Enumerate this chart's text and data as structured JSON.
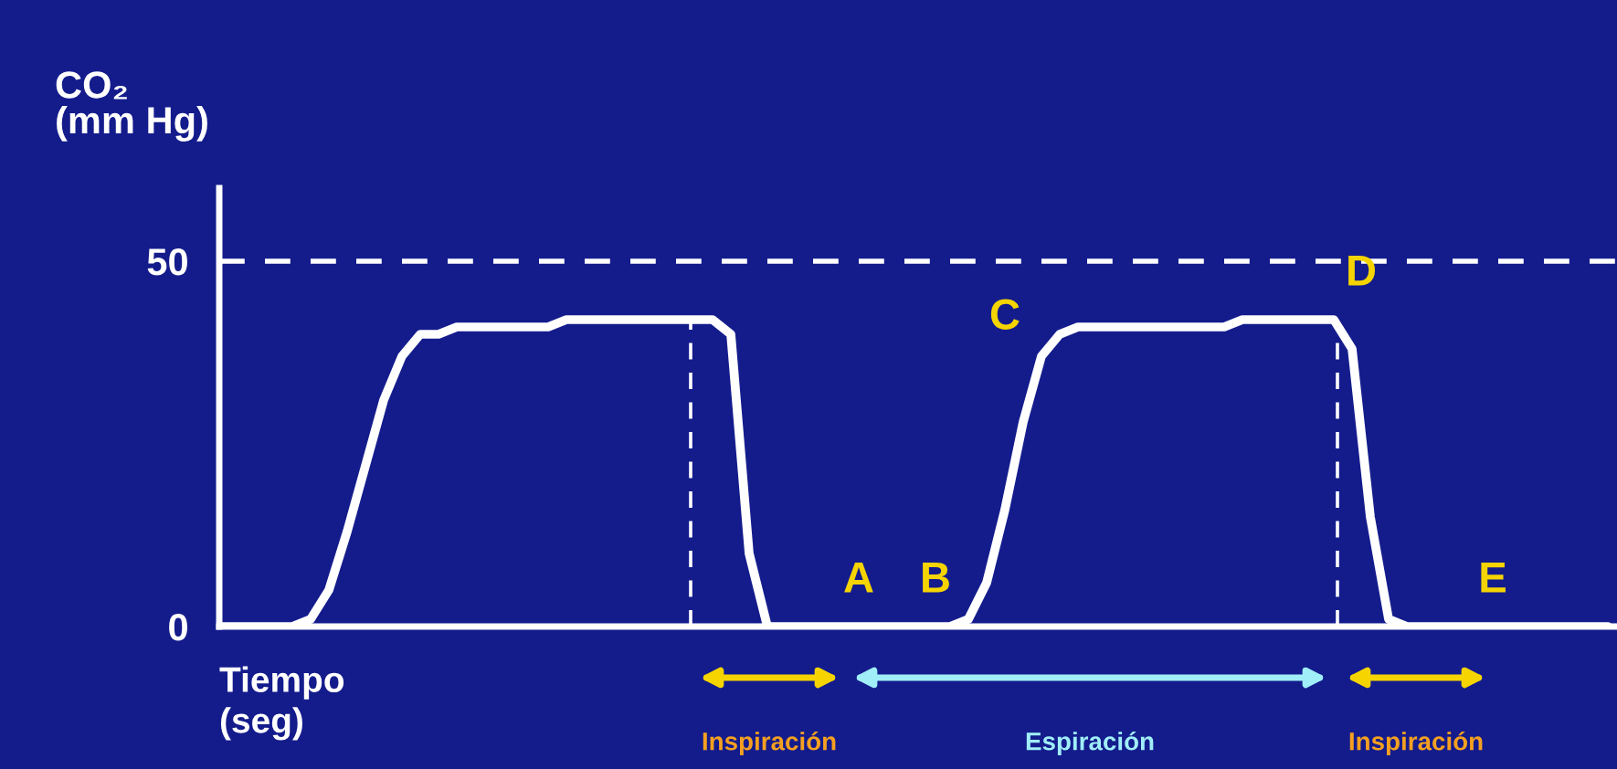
{
  "chart_data": {
    "type": "line",
    "ylabel": "CO₂\n(mm Hg)",
    "xlabel": "Tiempo\n(seg)",
    "categories": [
      null,
      null,
      null,
      null,
      null,
      null,
      null,
      null,
      null,
      null,
      null,
      null,
      null,
      null,
      null,
      null,
      null,
      null,
      null,
      null,
      null,
      null,
      null,
      null,
      null,
      null,
      null,
      null,
      null,
      null,
      null,
      null,
      null,
      null,
      null,
      null,
      null,
      null,
      null,
      null,
      null,
      null,
      null,
      null,
      null,
      null,
      null,
      null,
      null,
      null,
      null,
      null,
      null,
      null,
      null,
      null,
      null,
      null,
      null,
      null,
      null,
      null,
      null,
      null,
      null,
      null,
      null,
      null,
      null,
      null,
      null,
      null,
      null,
      null,
      null,
      null,
      null
    ],
    "series": [
      {
        "color": "#ffffff",
        "values": [
          0,
          0,
          0,
          0,
          0,
          1,
          5,
          13,
          22,
          31,
          37,
          40,
          40,
          41,
          41,
          41,
          41,
          41,
          41,
          42,
          42,
          42,
          42,
          42,
          42,
          42,
          42,
          42,
          40,
          10,
          0,
          0,
          0,
          0,
          0,
          0,
          0,
          0,
          0,
          0,
          0,
          1,
          6,
          16,
          28,
          37,
          40,
          41,
          41,
          41,
          41,
          41,
          41,
          41,
          41,
          41,
          42,
          42,
          42,
          42,
          42,
          42,
          38,
          15,
          1,
          0,
          0,
          0,
          0,
          0,
          0,
          0,
          0,
          0,
          0,
          0,
          0
        ]
      }
    ],
    "ylim": [
      0,
      60
    ],
    "yticks": [
      0,
      50
    ],
    "tick_labels": "y",
    "grid": false,
    "ref_lines": [
      {
        "axis": "y",
        "value": 50,
        "color": "#ffffff",
        "line_style": "dashed"
      }
    ],
    "annotations": [
      "A",
      "B",
      "C",
      "D",
      "E",
      "Inspiración",
      "Espiración",
      "Inspiración"
    ]
  }
}
